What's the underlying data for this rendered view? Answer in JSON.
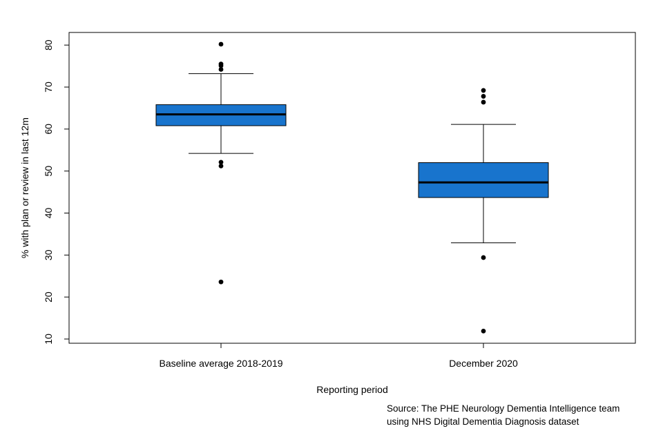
{
  "chart_data": {
    "type": "boxplot",
    "title": "",
    "xlabel": "Reporting period",
    "ylabel": "% with plan or review in last 12m",
    "ylim": [
      9,
      83
    ],
    "yticks": [
      10,
      20,
      30,
      40,
      50,
      60,
      70,
      80
    ],
    "grid": false,
    "box_color": "#1874CD",
    "categories": [
      "Baseline average 2018-2019",
      "December 2020"
    ],
    "boxes": [
      {
        "category": "Baseline average 2018-2019",
        "whisker_low": 54.2,
        "q1": 60.8,
        "median": 63.5,
        "q3": 65.8,
        "whisker_high": 73.2,
        "outliers": [
          80.2,
          75.5,
          75.1,
          74.2,
          52.1,
          51.2,
          23.6
        ]
      },
      {
        "category": "December 2020",
        "whisker_low": 32.9,
        "q1": 43.7,
        "median": 47.3,
        "q3": 52.0,
        "whisker_high": 61.1,
        "outliers": [
          69.2,
          67.8,
          66.4,
          29.4,
          11.9
        ]
      }
    ]
  },
  "source": {
    "line1": "Source: The PHE  Neurology Dementia Intelligence team",
    "line2": "using NHS  Digital Dementia Diagnosis dataset"
  }
}
